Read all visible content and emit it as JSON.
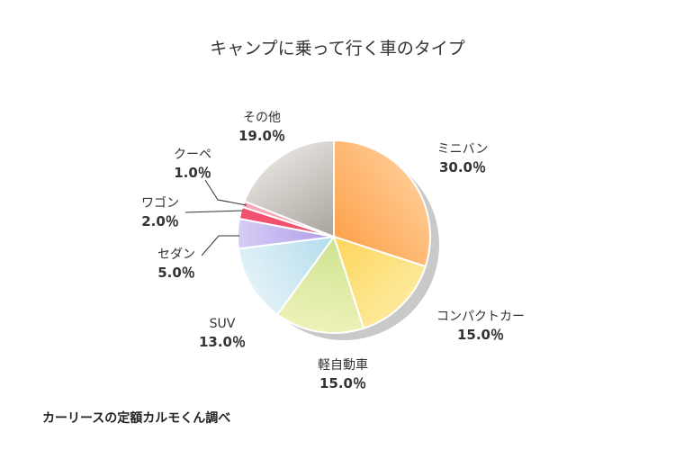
{
  "chart_data": {
    "type": "pie",
    "title": "キャンプに乗って行く車のタイプ",
    "slices": [
      {
        "label": "ミニバン",
        "value": 30.0,
        "display": "30.0％",
        "color_start": "#ffc98f",
        "color_end": "#fe9a3f"
      },
      {
        "label": "コンパクトカー",
        "value": 15.0,
        "display": "15.0％",
        "color_start": "#fde99a",
        "color_end": "#fdd24e"
      },
      {
        "label": "軽自動車",
        "value": 15.0,
        "display": "15.0％",
        "color_start": "#eef2b8",
        "color_end": "#c7e08a"
      },
      {
        "label": "SUV",
        "value": 13.0,
        "display": "13.0％",
        "color_start": "#e2f2f8",
        "color_end": "#a9d8ea"
      },
      {
        "label": "セダン",
        "value": 5.0,
        "display": "5.0％",
        "color_start": "#d6cdf6",
        "color_end": "#a592e6"
      },
      {
        "label": "ワゴン",
        "value": 2.0,
        "display": "2.0％",
        "color_start": "#f2506f",
        "color_end": "#f2506f"
      },
      {
        "label": "クーペ",
        "value": 1.0,
        "display": "1.0％",
        "color_start": "#f7a6b8",
        "color_end": "#f7a6b8"
      },
      {
        "label": "その他",
        "value": 19.0,
        "display": "19.0％",
        "color_start": "#e2ded9",
        "color_end": "#9e9791"
      }
    ],
    "legend": "none",
    "start_angle": "12 o'clock",
    "direction": "clockwise"
  },
  "source": "カーリースの定額カルモくん調べ"
}
